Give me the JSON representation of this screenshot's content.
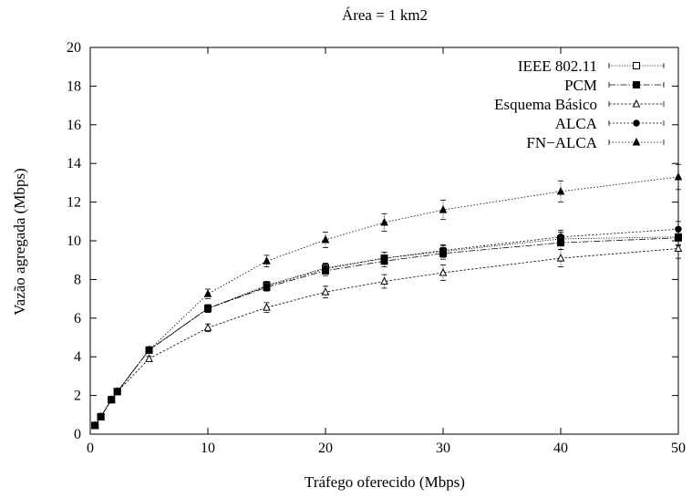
{
  "chart_data": {
    "type": "line",
    "title": "Área = 1 km2",
    "xlabel": "Tráfego oferecido (Mbps)",
    "ylabel": "Vazão agregada (Mbps)",
    "xlim": [
      0,
      50
    ],
    "ylim": [
      0,
      20
    ],
    "xticks": [
      0,
      10,
      20,
      30,
      40,
      50
    ],
    "yticks": [
      0,
      2,
      4,
      6,
      8,
      10,
      12,
      14,
      16,
      18,
      20
    ],
    "grid": false,
    "legend_position": "top-right",
    "series": [
      {
        "name": "IEEE 802.11",
        "marker": "open-square",
        "x": [
          0.4,
          0.9,
          1.8,
          2.3,
          5,
          10,
          15,
          20,
          25,
          30,
          40,
          50
        ],
        "y": [
          0.45,
          0.9,
          1.78,
          2.2,
          4.35,
          6.5,
          7.7,
          8.6,
          9.1,
          9.45,
          10.1,
          10.2
        ],
        "err": [
          0.05,
          0.05,
          0.08,
          0.08,
          0.12,
          0.2,
          0.2,
          0.25,
          0.3,
          0.3,
          0.35,
          0.4
        ]
      },
      {
        "name": "PCM",
        "marker": "filled-square",
        "x": [
          0.4,
          0.9,
          1.8,
          2.3,
          5,
          10,
          15,
          20,
          25,
          30,
          40,
          50
        ],
        "y": [
          0.45,
          0.9,
          1.78,
          2.2,
          4.35,
          6.5,
          7.6,
          8.45,
          8.95,
          9.35,
          9.9,
          10.15
        ],
        "err": [
          0.05,
          0.05,
          0.08,
          0.08,
          0.12,
          0.2,
          0.2,
          0.25,
          0.3,
          0.3,
          0.35,
          0.4
        ]
      },
      {
        "name": "Esquema Básico",
        "marker": "open-triangle",
        "x": [
          0.4,
          0.9,
          1.8,
          2.3,
          5,
          10,
          15,
          20,
          25,
          30,
          40,
          50
        ],
        "y": [
          0.45,
          0.9,
          1.78,
          2.2,
          3.9,
          5.5,
          6.55,
          7.35,
          7.9,
          8.35,
          9.1,
          9.6
        ],
        "err": [
          0.05,
          0.05,
          0.08,
          0.08,
          0.12,
          0.2,
          0.25,
          0.3,
          0.35,
          0.4,
          0.45,
          0.5
        ]
      },
      {
        "name": "ALCA",
        "marker": "filled-circle",
        "x": [
          0.4,
          0.9,
          1.8,
          2.3,
          5,
          10,
          15,
          20,
          25,
          30,
          40,
          50
        ],
        "y": [
          0.45,
          0.9,
          1.78,
          2.2,
          4.35,
          6.5,
          7.65,
          8.55,
          9.1,
          9.5,
          10.2,
          10.6
        ],
        "err": [
          0.05,
          0.05,
          0.08,
          0.08,
          0.12,
          0.2,
          0.2,
          0.25,
          0.3,
          0.3,
          0.35,
          0.4
        ]
      },
      {
        "name": "FN−ALCA",
        "marker": "filled-triangle",
        "x": [
          0.4,
          0.9,
          1.8,
          2.3,
          5,
          10,
          15,
          20,
          25,
          30,
          40,
          50
        ],
        "y": [
          0.45,
          0.9,
          1.78,
          2.2,
          4.35,
          7.25,
          8.95,
          10.05,
          10.95,
          11.6,
          12.55,
          13.3
        ],
        "err": [
          0.05,
          0.05,
          0.08,
          0.08,
          0.12,
          0.25,
          0.3,
          0.4,
          0.45,
          0.5,
          0.55,
          0.65
        ]
      }
    ]
  }
}
